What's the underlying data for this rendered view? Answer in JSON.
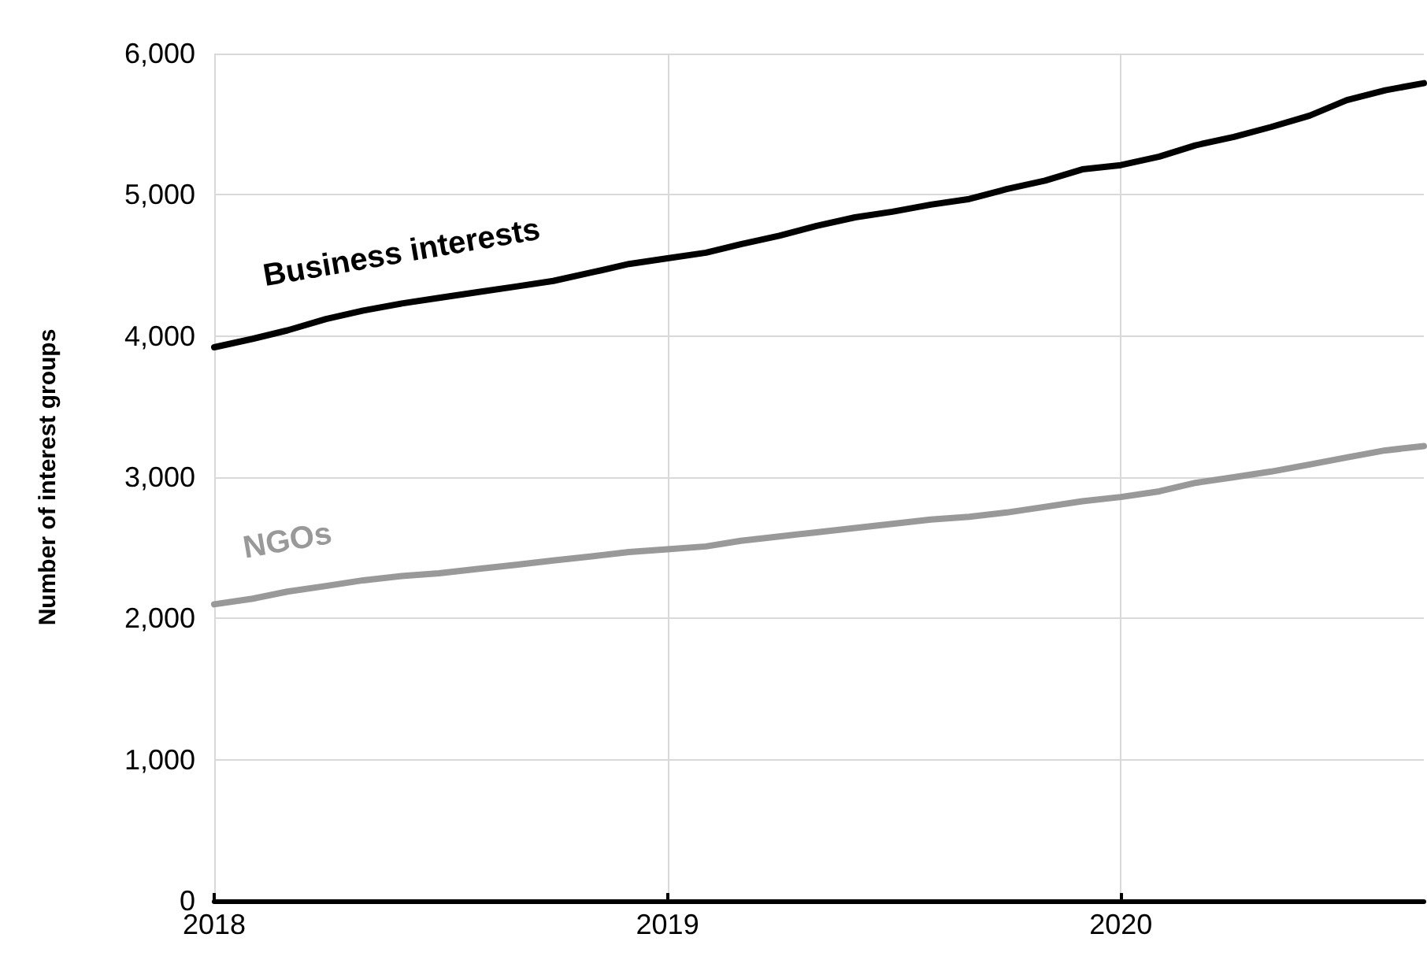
{
  "chart_data": {
    "type": "line",
    "ylabel": "Number of interest groups",
    "x": [
      "2018-01",
      "2018-02",
      "2018-03",
      "2018-04",
      "2018-05",
      "2018-06",
      "2018-07",
      "2018-08",
      "2018-09",
      "2018-10",
      "2018-11",
      "2018-12",
      "2019-01",
      "2019-02",
      "2019-03",
      "2019-04",
      "2019-05",
      "2019-06",
      "2019-07",
      "2019-08",
      "2019-09",
      "2019-10",
      "2019-11",
      "2019-12",
      "2020-01",
      "2020-02",
      "2020-03",
      "2020-04",
      "2020-05",
      "2020-06",
      "2020-07",
      "2020-08",
      "2020-09"
    ],
    "series": [
      {
        "name": "Business interests",
        "color": "#000000",
        "values": [
          3920,
          3980,
          4040,
          4120,
          4180,
          4230,
          4270,
          4310,
          4350,
          4390,
          4450,
          4510,
          4550,
          4590,
          4650,
          4710,
          4780,
          4840,
          4880,
          4930,
          4970,
          5040,
          5100,
          5180,
          5210,
          5270,
          5350,
          5410,
          5480,
          5560,
          5670,
          5740,
          5790
        ]
      },
      {
        "name": "NGOs",
        "color": "#999999",
        "values": [
          2100,
          2140,
          2190,
          2230,
          2270,
          2300,
          2320,
          2350,
          2380,
          2410,
          2440,
          2470,
          2490,
          2510,
          2550,
          2580,
          2610,
          2640,
          2670,
          2700,
          2720,
          2750,
          2790,
          2830,
          2860,
          2900,
          2960,
          3000,
          3040,
          3090,
          3140,
          3190,
          3220
        ]
      }
    ],
    "xlim": [
      "2018-01",
      "2020-09"
    ],
    "xticks": [
      "2018",
      "2019",
      "2020"
    ],
    "ylim": [
      0,
      6000
    ],
    "yticks": [
      {
        "value": 0,
        "label": "0"
      },
      {
        "value": 1000,
        "label": "1,000"
      },
      {
        "value": 2000,
        "label": "2,000"
      },
      {
        "value": 3000,
        "label": "3,000"
      },
      {
        "value": 4000,
        "label": "4,000"
      },
      {
        "value": 5000,
        "label": "5,000"
      },
      {
        "value": 6000,
        "label": "6,000"
      }
    ],
    "grid": true,
    "legend": false,
    "marker": "none",
    "line_style": "solid"
  }
}
